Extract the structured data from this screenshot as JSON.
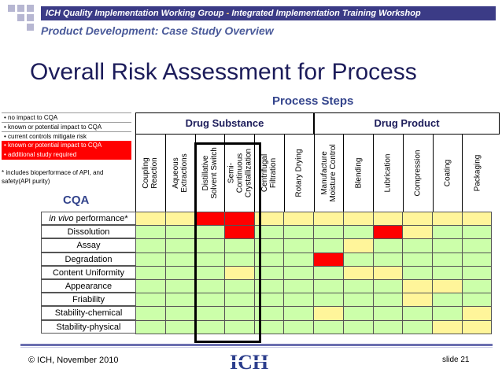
{
  "header": {
    "group": "ICH Quality Implementation Working Group",
    "separator": " - ",
    "workshop": "Integrated Implementation Training Workshop"
  },
  "subtitle": "Product Development: Case Study Overview",
  "title": "Overall Risk Assessment for Process",
  "legend": [
    {
      "text": "• no impact to CQA",
      "style": "white"
    },
    {
      "text": "• known or potential impact to CQA",
      "style": "white"
    },
    {
      "text": "• current controls mitigate risk",
      "style": "white"
    },
    {
      "text": "• known or potential impact to CQA",
      "style": "red"
    },
    {
      "text": "• additional study required",
      "style": "red"
    }
  ],
  "note": "* includes bioperformace of API, and safety(API purity)",
  "cqa_label": "CQA",
  "process_steps_title": "Process Steps",
  "groups": [
    "Drug Substance",
    "Drug Product"
  ],
  "steps": [
    "Coupling\nReaction",
    "Aqueous\nExtractions",
    "Distillative\nSolvent Switch",
    "Semi-\nContinuous\nCrystallization",
    "Centrifugal\nFiltration",
    "Rotary Drying",
    "Manufacture\nMoisture Control",
    "Blending",
    "Lubrication",
    "Compression",
    "Coating",
    "Packaging"
  ],
  "cqas": [
    {
      "label": "in vivo",
      "suffix": " performance*"
    },
    {
      "label": "Dissolution"
    },
    {
      "label": "Assay"
    },
    {
      "label": "Degradation"
    },
    {
      "label": "Content Uniformity"
    },
    {
      "label": "Appearance"
    },
    {
      "label": "Friability"
    },
    {
      "label": "Stability-chemical"
    },
    {
      "label": "Stability-physical"
    }
  ],
  "matrix": [
    [
      "y",
      "y",
      "r",
      "r",
      "y",
      "y",
      "y",
      "y",
      "y",
      "y",
      "y",
      "y"
    ],
    [
      "g",
      "g",
      "g",
      "r",
      "g",
      "g",
      "g",
      "g",
      "r",
      "y",
      "g",
      "g"
    ],
    [
      "g",
      "g",
      "g",
      "g",
      "g",
      "g",
      "g",
      "y",
      "g",
      "g",
      "g",
      "g"
    ],
    [
      "g",
      "g",
      "g",
      "g",
      "g",
      "g",
      "r",
      "g",
      "g",
      "g",
      "g",
      "g"
    ],
    [
      "g",
      "g",
      "g",
      "y",
      "g",
      "g",
      "g",
      "y",
      "y",
      "g",
      "g",
      "g"
    ],
    [
      "g",
      "g",
      "g",
      "g",
      "g",
      "g",
      "g",
      "g",
      "g",
      "y",
      "y",
      "g"
    ],
    [
      "g",
      "g",
      "g",
      "g",
      "g",
      "g",
      "g",
      "g",
      "g",
      "y",
      "g",
      "g"
    ],
    [
      "g",
      "g",
      "g",
      "g",
      "g",
      "g",
      "y",
      "g",
      "g",
      "g",
      "g",
      "y"
    ],
    [
      "g",
      "g",
      "g",
      "g",
      "g",
      "g",
      "g",
      "g",
      "g",
      "g",
      "y",
      "y"
    ]
  ],
  "colors": {
    "g": "#ccffaa",
    "y": "#fff59a",
    "r": "#ff0000",
    "accent": "#33448c"
  },
  "footer": {
    "copyright": "© ICH, November 2010",
    "slide": "slide 21",
    "logo_text": "ICH"
  }
}
